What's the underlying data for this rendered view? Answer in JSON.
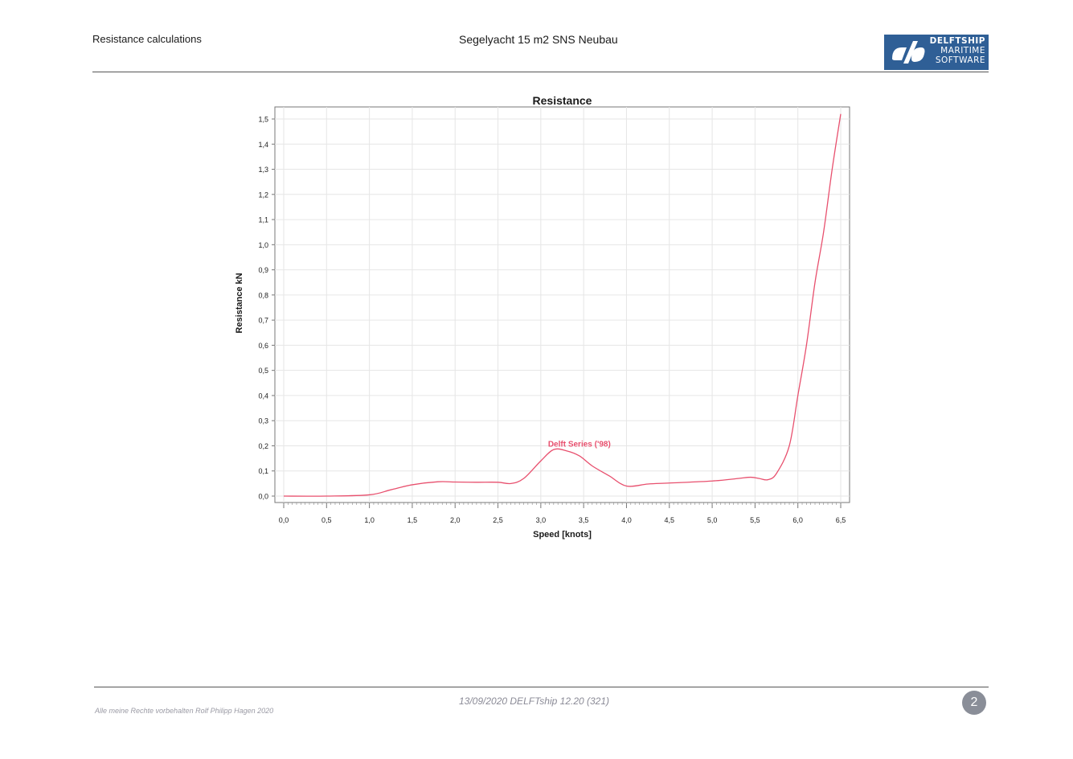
{
  "header": {
    "left": "Resistance calculations",
    "center": "Segelyacht 15 m2 SNS Neubau",
    "logo": {
      "lines": [
        "DELFTSHIP",
        "MARITIME",
        "SOFTWARE"
      ],
      "background": "#2f5f96"
    }
  },
  "footer": {
    "center": "13/09/2020 DELFTship 12.20 (321)",
    "left": "Alle meine Rechte vorbehalten Rolf Philipp Hagen 2020",
    "page_number": "2"
  },
  "chart_data": {
    "type": "line",
    "title": "Resistance",
    "xlabel": "Speed [knots]",
    "ylabel": "Resistance kN",
    "xlim": [
      0.0,
      6.5
    ],
    "ylim": [
      0.0,
      1.5
    ],
    "x_ticks": [
      "0,0",
      "0,5",
      "1,0",
      "1,5",
      "2,0",
      "2,5",
      "3,0",
      "3,5",
      "4,0",
      "4,5",
      "5,0",
      "5,5",
      "6,0",
      "6,5"
    ],
    "y_ticks": [
      "0,0",
      "0,1",
      "0,2",
      "0,3",
      "0,4",
      "0,5",
      "0,6",
      "0,7",
      "0,8",
      "0,9",
      "1,0",
      "1,1",
      "1,2",
      "1,3",
      "1,4",
      "1,5"
    ],
    "grid": true,
    "series": [
      {
        "name": "Delft Series ('98)",
        "color": "#e8506e",
        "x": [
          0.0,
          0.5,
          1.0,
          1.25,
          1.5,
          1.8,
          2.0,
          2.25,
          2.5,
          2.65,
          2.8,
          3.0,
          3.15,
          3.3,
          3.45,
          3.6,
          3.8,
          4.0,
          4.25,
          4.5,
          5.0,
          5.3,
          5.45,
          5.55,
          5.65,
          5.75,
          5.9,
          6.0,
          6.1,
          6.2,
          6.3,
          6.4,
          6.5
        ],
        "y": [
          0.0,
          0.0,
          0.005,
          0.025,
          0.045,
          0.057,
          0.056,
          0.055,
          0.055,
          0.05,
          0.07,
          0.14,
          0.185,
          0.18,
          0.16,
          0.12,
          0.08,
          0.04,
          0.048,
          0.052,
          0.06,
          0.07,
          0.075,
          0.07,
          0.065,
          0.09,
          0.2,
          0.4,
          0.6,
          0.85,
          1.05,
          1.3,
          1.52
        ]
      }
    ],
    "annotations": [
      {
        "text": "Delft Series ('98)",
        "x": 3.45,
        "y": 0.2,
        "color": "#e8506e"
      }
    ]
  }
}
